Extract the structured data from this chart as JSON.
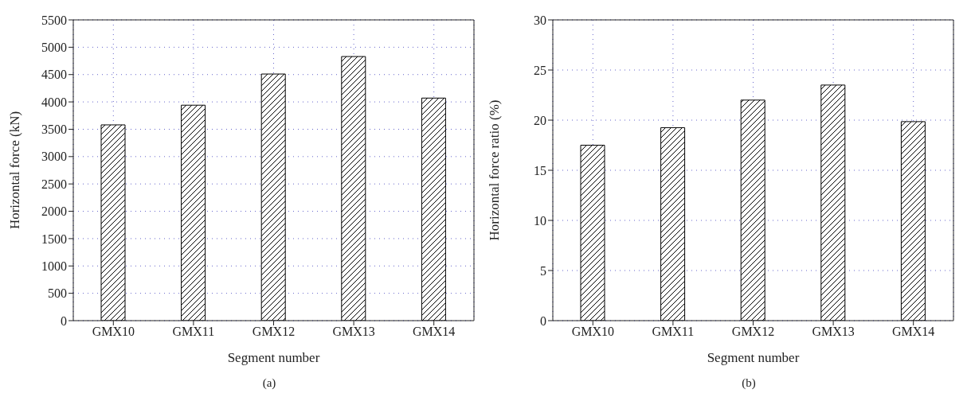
{
  "chart_data": [
    {
      "type": "bar",
      "categories": [
        "GMX10",
        "GMX11",
        "GMX12",
        "GMX13",
        "GMX14"
      ],
      "values": [
        3580,
        3940,
        4510,
        4830,
        4070
      ],
      "color": "#000000",
      "xlabel": "Segment number",
      "ylabel": "Horizontal force (kN)",
      "ylim": [
        0,
        5500
      ],
      "yticks": [
        0,
        500,
        1000,
        1500,
        2000,
        2500,
        3000,
        3500,
        4000,
        4500,
        5000,
        5500
      ],
      "grid": true,
      "annotations": [
        "(a)"
      ]
    },
    {
      "type": "bar",
      "categories": [
        "GMX10",
        "GMX11",
        "GMX12",
        "GMX13",
        "GMX14"
      ],
      "values": [
        17.5,
        19.25,
        22.0,
        23.5,
        19.85
      ],
      "color": "#000000",
      "xlabel": "Segment number",
      "ylabel": "Horizontal force ratio (%)",
      "ylim": [
        0,
        30
      ],
      "yticks": [
        0,
        5,
        10,
        15,
        20,
        25,
        30
      ],
      "grid": true,
      "annotations": [
        "(b)"
      ]
    }
  ]
}
